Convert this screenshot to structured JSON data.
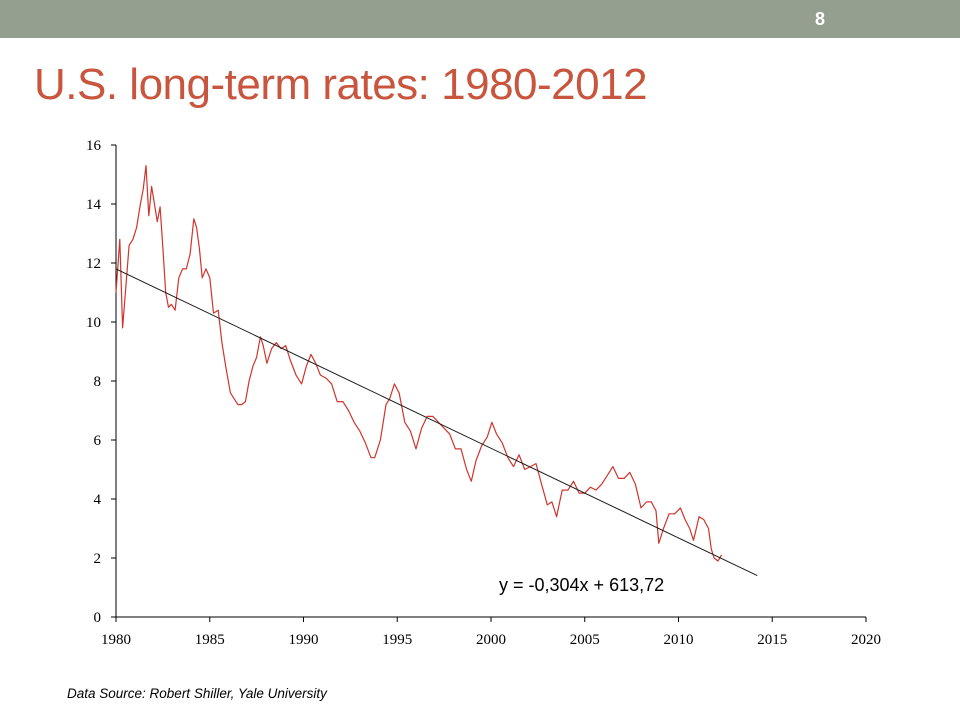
{
  "slide": {
    "number": "8",
    "title": "U.S. long-term rates:  1980-2012",
    "source_note": "Data Source:  Robert Shiller, Yale University"
  },
  "colors": {
    "header_bar": "#959f8f",
    "title": "#c8553d",
    "series_line": "#d0342c",
    "trend_line": "#1a1a1a"
  },
  "chart_data": {
    "type": "line",
    "xlim": [
      1980,
      2020
    ],
    "ylim": [
      0,
      16
    ],
    "x_ticks": [
      1980,
      1985,
      1990,
      1995,
      2000,
      2005,
      2010,
      2015,
      2020
    ],
    "y_ticks": [
      0,
      2,
      4,
      6,
      8,
      10,
      12,
      14,
      16
    ],
    "grid": false,
    "legend": "none",
    "series": [
      {
        "x": [
          1980.0,
          1980.2,
          1980.35,
          1980.5,
          1980.7,
          1980.9,
          1981.1,
          1981.3,
          1981.45,
          1981.6,
          1981.75,
          1981.9,
          1982.1,
          1982.2,
          1982.35,
          1982.5,
          1982.65,
          1982.8,
          1982.95,
          1983.15,
          1983.35,
          1983.55,
          1983.75,
          1983.95,
          1984.15,
          1984.3,
          1984.45,
          1984.6,
          1984.8,
          1985.0,
          1985.2,
          1985.45,
          1985.65,
          1985.85,
          1986.1,
          1986.3,
          1986.5,
          1986.7,
          1986.9,
          1987.1,
          1987.3,
          1987.5,
          1987.7,
          1987.85,
          1988.05,
          1988.3,
          1988.55,
          1988.8,
          1989.05,
          1989.3,
          1989.6,
          1989.9,
          1990.15,
          1990.4,
          1990.65,
          1990.9,
          1991.2,
          1991.5,
          1991.8,
          1992.1,
          1992.4,
          1992.7,
          1993.0,
          1993.3,
          1993.6,
          1993.8,
          1994.1,
          1994.4,
          1994.6,
          1994.85,
          1995.1,
          1995.4,
          1995.7,
          1996.0,
          1996.3,
          1996.6,
          1996.9,
          1997.2,
          1997.5,
          1997.8,
          1998.1,
          1998.4,
          1998.7,
          1998.95,
          1999.2,
          1999.5,
          1999.8,
          2000.05,
          2000.3,
          2000.6,
          2000.9,
          2001.2,
          2001.5,
          2001.8,
          2002.1,
          2002.4,
          2002.7,
          2003.0,
          2003.25,
          2003.5,
          2003.8,
          2004.1,
          2004.4,
          2004.7,
          2005.0,
          2005.3,
          2005.6,
          2005.9,
          2006.2,
          2006.5,
          2006.8,
          2007.1,
          2007.4,
          2007.7,
          2008.0,
          2008.3,
          2008.55,
          2008.8,
          2008.95,
          2009.2,
          2009.5,
          2009.8,
          2010.1,
          2010.35,
          2010.6,
          2010.8,
          2011.1,
          2011.35,
          2011.6,
          2011.75,
          2011.9,
          2012.1,
          2012.3
        ],
        "y": [
          11.0,
          12.8,
          9.8,
          11.0,
          12.6,
          12.8,
          13.2,
          14.0,
          14.5,
          15.3,
          13.6,
          14.6,
          13.8,
          13.4,
          13.9,
          12.5,
          11.0,
          10.5,
          10.6,
          10.4,
          11.5,
          11.8,
          11.8,
          12.3,
          13.5,
          13.2,
          12.5,
          11.5,
          11.8,
          11.5,
          10.3,
          10.4,
          9.3,
          8.5,
          7.6,
          7.4,
          7.2,
          7.2,
          7.3,
          8.0,
          8.5,
          8.8,
          9.5,
          9.2,
          8.6,
          9.1,
          9.3,
          9.1,
          9.2,
          8.7,
          8.2,
          7.9,
          8.5,
          8.9,
          8.6,
          8.2,
          8.1,
          7.9,
          7.3,
          7.3,
          7.0,
          6.6,
          6.3,
          5.9,
          5.4,
          5.4,
          6.0,
          7.2,
          7.4,
          7.9,
          7.6,
          6.6,
          6.3,
          5.7,
          6.4,
          6.8,
          6.8,
          6.6,
          6.4,
          6.2,
          5.7,
          5.7,
          5.0,
          4.6,
          5.3,
          5.8,
          6.1,
          6.6,
          6.2,
          5.9,
          5.4,
          5.1,
          5.5,
          5.0,
          5.1,
          5.2,
          4.5,
          3.8,
          3.9,
          3.4,
          4.3,
          4.3,
          4.6,
          4.2,
          4.2,
          4.4,
          4.3,
          4.5,
          4.8,
          5.1,
          4.7,
          4.7,
          4.9,
          4.5,
          3.7,
          3.9,
          3.9,
          3.6,
          2.5,
          3.0,
          3.5,
          3.5,
          3.7,
          3.3,
          3.0,
          2.6,
          3.4,
          3.3,
          3.0,
          2.3,
          2.0,
          1.9,
          2.1
        ]
      }
    ],
    "trendline": {
      "label": "y = -0,304x + 613,72",
      "slope": -0.304,
      "intercept": 613.72,
      "x_range": [
        1980,
        2014.2
      ]
    }
  }
}
